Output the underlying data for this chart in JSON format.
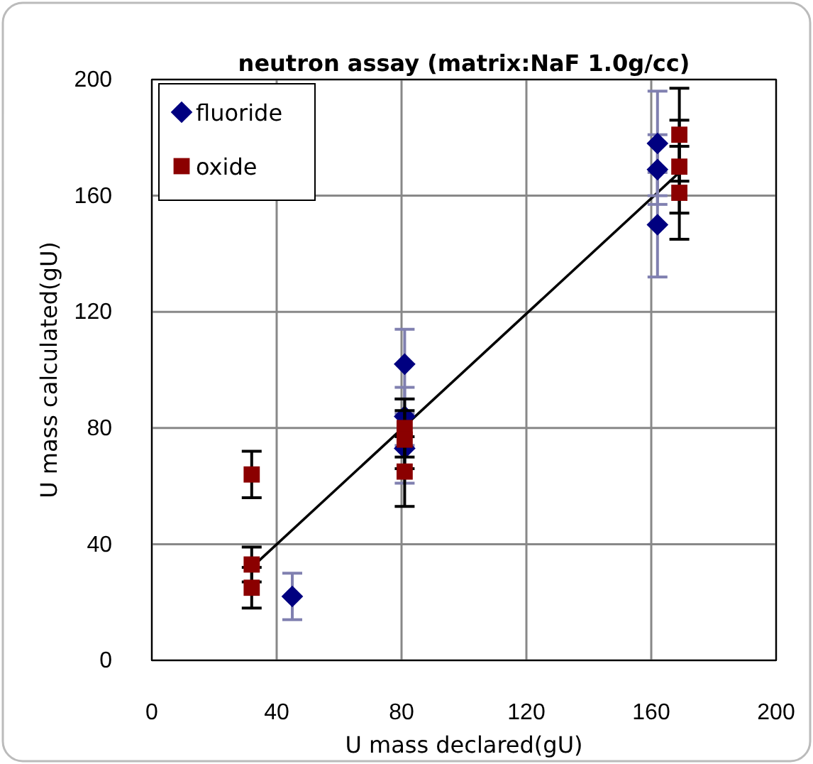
{
  "chart_data": {
    "type": "scatter",
    "title": "neutron assay (matrix:NaF 1.0g/cc)",
    "xlabel": "U mass declared(gU)",
    "ylabel": "U mass calculated(gU)",
    "xlim": [
      0,
      200
    ],
    "xticks": [
      0,
      40,
      80,
      120,
      160,
      200
    ],
    "ylim": [
      0,
      200
    ],
    "yticks": [
      0,
      40,
      80,
      120,
      160,
      200
    ],
    "grid": true,
    "legend": "top left",
    "series": [
      {
        "name": "fluoride",
        "color": "#000080",
        "marker": "diamond",
        "x": [
          45,
          81,
          81,
          81,
          162,
          162,
          162
        ],
        "values": [
          22,
          102,
          84,
          73,
          178,
          169,
          150
        ],
        "errors": [
          8,
          12,
          10,
          12,
          18,
          12,
          18
        ]
      },
      {
        "name": "oxide",
        "color": "#8b0000",
        "marker": "square",
        "x": [
          32,
          32,
          32,
          81,
          81,
          81,
          169,
          169,
          169
        ],
        "values": [
          64,
          33,
          25,
          80,
          76,
          65,
          181,
          170,
          161
        ],
        "errors": [
          8,
          6,
          7,
          10,
          10,
          12,
          16,
          16,
          16
        ]
      },
      {
        "type": "line",
        "color": "#000000",
        "x": [
          32,
          169
        ],
        "values": [
          32,
          168
        ]
      }
    ]
  }
}
